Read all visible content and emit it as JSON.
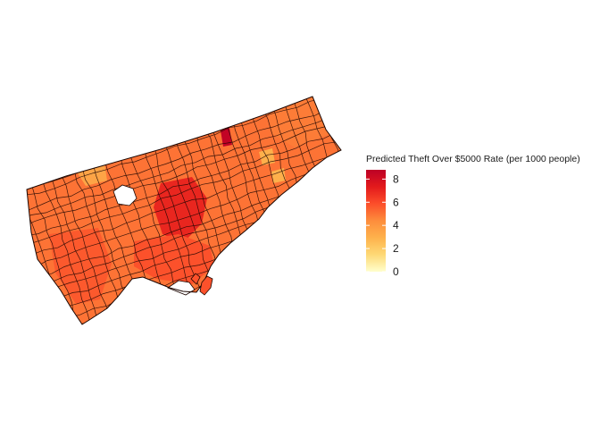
{
  "chart_data": {
    "type": "choropleth",
    "title": "",
    "legend": {
      "title": "Predicted Theft Over $5000 Rate (per 1000 people)",
      "placement": "right",
      "range": [
        0,
        8.8
      ],
      "ticks": [
        0,
        2,
        4,
        6,
        8
      ],
      "tick_labels": [
        "0",
        "2",
        "4",
        "6",
        "8"
      ],
      "colors": [
        "#ffffcc",
        "#fed976",
        "#feb24c",
        "#fd8d3c",
        "#fc4e2a",
        "#e31a1c",
        "#bd0026"
      ]
    },
    "region_values": {
      "base": 5.0,
      "central_high": 7.0,
      "north_hotspot": 8.6,
      "northwest_low": 3.5,
      "east_low": 3.0,
      "southwest": 5.6,
      "downtown": 5.8,
      "scarborough_north": 4.8
    },
    "grid": false,
    "axes": false
  }
}
